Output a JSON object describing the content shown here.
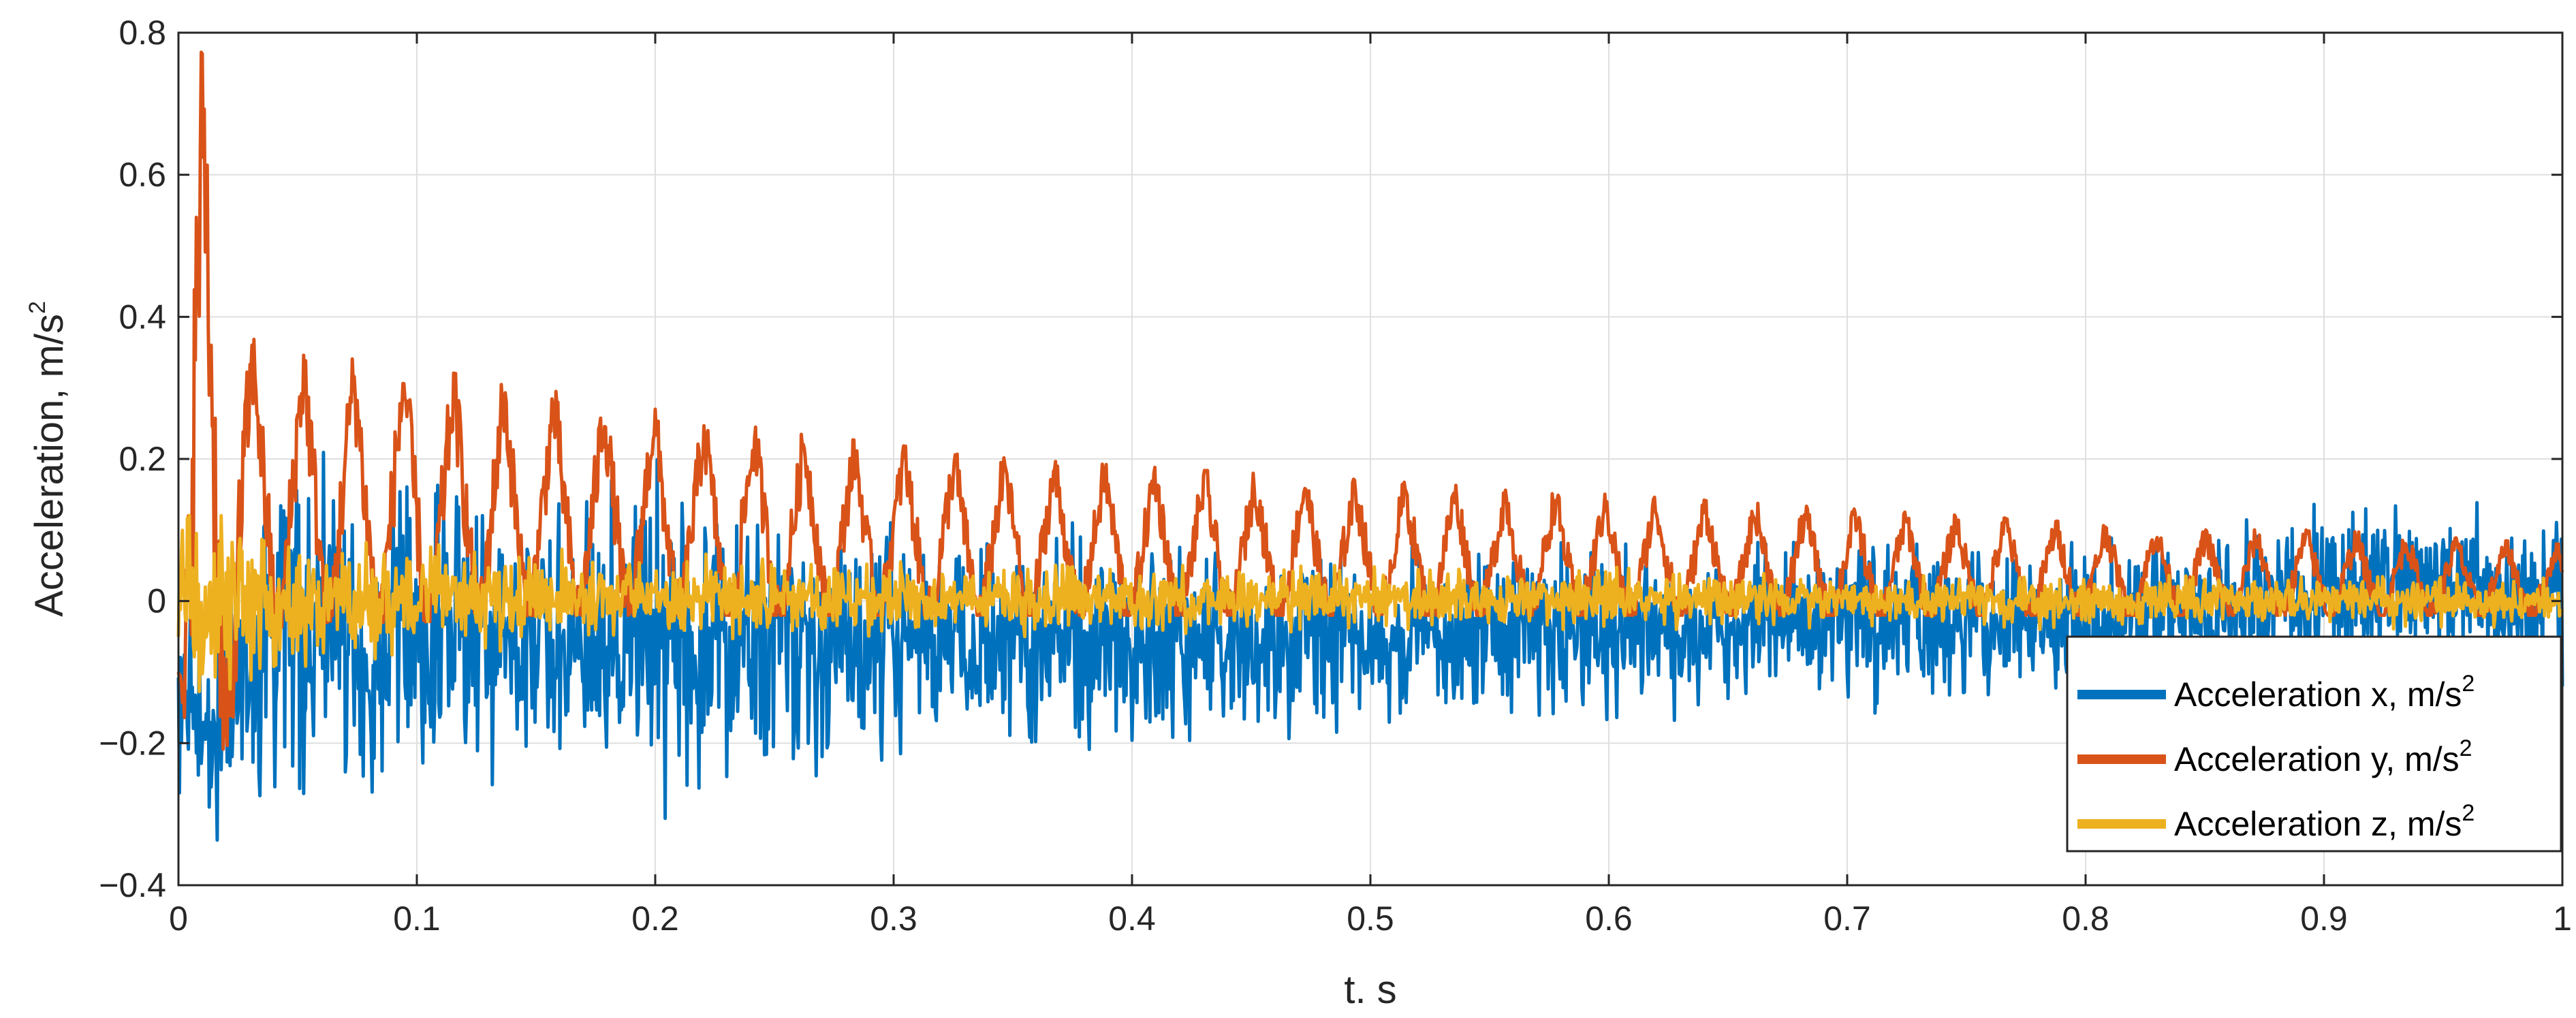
{
  "chart_data": {
    "type": "line",
    "title": "",
    "xlabel": "t. s",
    "ylabel": "Acceleration, m/s",
    "ylabel_superscript": "2",
    "xlim": [
      0,
      1
    ],
    "ylim": [
      -0.4,
      0.8
    ],
    "x_ticks": [
      0,
      0.1,
      0.2,
      0.3,
      0.4,
      0.5,
      0.6,
      0.7,
      0.8,
      0.9,
      1
    ],
    "x_tick_labels": [
      "0",
      "0.1",
      "0.2",
      "0.3",
      "0.4",
      "0.5",
      "0.6",
      "0.7",
      "0.8",
      "0.9",
      "1"
    ],
    "y_ticks": [
      -0.4,
      -0.2,
      0,
      0.2,
      0.4,
      0.6,
      0.8
    ],
    "y_tick_labels": [
      "−0.4",
      "−0.2",
      "0",
      "0.2",
      "0.4",
      "0.6",
      "0.8"
    ],
    "grid": true,
    "legend_position": "bottom-right",
    "series": [
      {
        "name": "Acceleration x, m/s",
        "name_superscript": "2",
        "color": "#0072BD",
        "envelope": {
          "t": [
            0,
            0.01,
            0.05,
            0.1,
            0.15,
            0.2,
            0.25,
            0.3,
            0.35,
            0.4,
            0.45,
            0.5,
            0.55,
            0.6,
            0.65,
            0.7,
            0.75,
            0.8,
            0.85,
            0.9,
            0.95,
            1
          ],
          "upper": [
            0.1,
            0.05,
            0.22,
            0.17,
            0.13,
            0.2,
            0.14,
            0.12,
            0.1,
            0.12,
            0.1,
            0.08,
            0.07,
            0.09,
            0.07,
            0.12,
            0.1,
            0.08,
            0.12,
            0.14,
            0.13,
            0.16
          ],
          "lower": [
            -0.35,
            -0.39,
            -0.28,
            -0.3,
            -0.25,
            -0.31,
            -0.26,
            -0.22,
            -0.22,
            -0.25,
            -0.2,
            -0.18,
            -0.16,
            -0.19,
            -0.15,
            -0.16,
            -0.15,
            -0.14,
            -0.14,
            -0.12,
            -0.12,
            -0.12
          ]
        }
      },
      {
        "name": "Acceleration y, m/s",
        "name_superscript": "2",
        "color": "#D95319",
        "envelope": {
          "t": [
            0,
            0.005,
            0.01,
            0.03,
            0.05,
            0.1,
            0.15,
            0.2,
            0.25,
            0.3,
            0.35,
            0.4,
            0.45,
            0.5,
            0.55,
            0.6,
            0.65,
            0.7,
            0.75,
            0.8,
            0.85,
            0.9,
            0.95,
            1
          ],
          "upper": [
            0.0,
            0.8,
            0.77,
            0.37,
            0.35,
            0.33,
            0.3,
            0.27,
            0.24,
            0.22,
            0.2,
            0.19,
            0.18,
            0.17,
            0.16,
            0.15,
            0.14,
            0.13,
            0.12,
            0.11,
            0.1,
            0.1,
            0.09,
            0.08
          ],
          "lower": [
            -0.1,
            -0.36,
            -0.37,
            -0.05,
            -0.03,
            -0.03,
            -0.02,
            -0.02,
            -0.02,
            -0.02,
            -0.02,
            -0.02,
            -0.02,
            -0.02,
            -0.02,
            -0.02,
            -0.02,
            -0.02,
            -0.02,
            -0.02,
            -0.02,
            -0.02,
            -0.02,
            -0.02
          ]
        },
        "oscillation_period_s": 0.021
      },
      {
        "name": "Acceleration z, m/s",
        "name_superscript": "2",
        "color": "#EDB120",
        "envelope": {
          "t": [
            0,
            0.01,
            0.05,
            0.1,
            0.2,
            0.3,
            0.4,
            0.5,
            0.6,
            0.7,
            0.8,
            0.9,
            1
          ],
          "upper": [
            0.15,
            0.2,
            0.1,
            0.08,
            0.07,
            0.06,
            0.05,
            0.05,
            0.05,
            0.04,
            0.04,
            0.04,
            0.04
          ],
          "lower": [
            -0.15,
            -0.2,
            -0.1,
            -0.08,
            -0.06,
            -0.05,
            -0.05,
            -0.04,
            -0.04,
            -0.04,
            -0.04,
            -0.04,
            -0.04
          ]
        }
      }
    ]
  }
}
